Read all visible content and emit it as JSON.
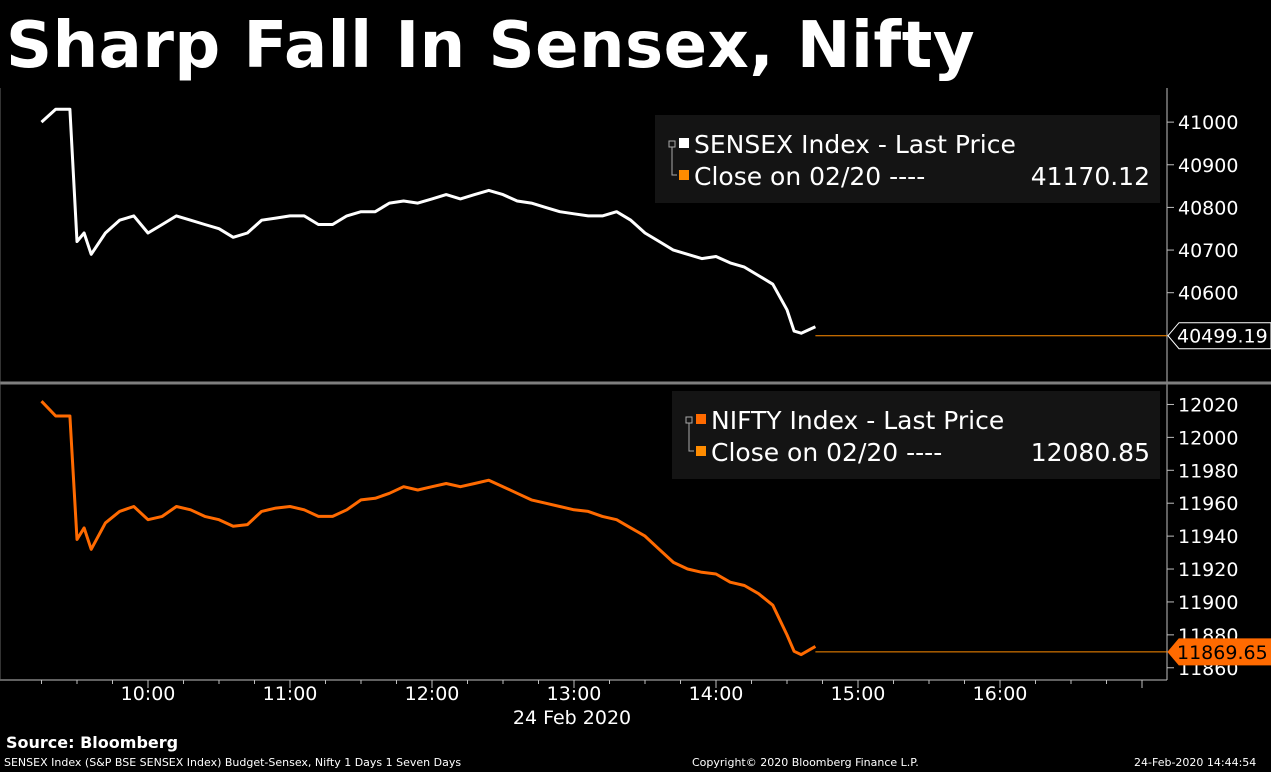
{
  "title": "Sharp Fall In Sensex, Nifty",
  "colors": {
    "sensex": "#ffffff",
    "nifty": "#ff6a00",
    "close_line": "#ff8c00",
    "legend_bg": "#141414",
    "divider": "#7f7f7f"
  },
  "chart_data": [
    {
      "type": "line",
      "name": "SENSEX",
      "legend": {
        "series_label": "SENSEX Index - Last Price",
        "close_label": "Close on 02/20 ----",
        "close_value": "41170.12"
      },
      "last_value": 40499.19,
      "last_label": "40499.19",
      "ylim": [
        40400,
        41080
      ],
      "yticks": [
        41000,
        40900,
        40800,
        40700,
        40600
      ],
      "x_unit": "hours (24 Feb 2020)",
      "x": [
        9.25,
        9.35,
        9.45,
        9.5,
        9.55,
        9.6,
        9.7,
        9.8,
        9.9,
        10.0,
        10.1,
        10.2,
        10.3,
        10.4,
        10.5,
        10.6,
        10.7,
        10.8,
        10.9,
        11.0,
        11.1,
        11.2,
        11.3,
        11.4,
        11.5,
        11.6,
        11.7,
        11.8,
        11.9,
        12.0,
        12.1,
        12.2,
        12.3,
        12.4,
        12.5,
        12.6,
        12.7,
        12.8,
        12.9,
        13.0,
        13.1,
        13.2,
        13.3,
        13.4,
        13.5,
        13.6,
        13.7,
        13.8,
        13.9,
        14.0,
        14.1,
        14.2,
        14.3,
        14.4,
        14.5,
        14.55,
        14.6,
        14.7
      ],
      "y": [
        41000,
        41030,
        41030,
        40720,
        40740,
        40690,
        40740,
        40770,
        40780,
        40740,
        40760,
        40780,
        40770,
        40760,
        40750,
        40730,
        40740,
        40770,
        40775,
        40780,
        40780,
        40760,
        40760,
        40780,
        40790,
        40790,
        40810,
        40815,
        40810,
        40820,
        40830,
        40820,
        40830,
        40840,
        40830,
        40815,
        40810,
        40800,
        40790,
        40785,
        40780,
        40780,
        40790,
        40770,
        40740,
        40720,
        40700,
        40690,
        40680,
        40685,
        40670,
        40660,
        40640,
        40620,
        40560,
        40510,
        40505,
        40520
      ]
    },
    {
      "type": "line",
      "name": "NIFTY",
      "legend": {
        "series_label": "NIFTY Index - Last Price",
        "close_label": "Close on 02/20 ----",
        "close_value": "12080.85"
      },
      "last_value": 11869.65,
      "last_label": "11869.65",
      "ylim": [
        11855,
        12030
      ],
      "yticks": [
        12020,
        12000,
        11980,
        11960,
        11940,
        11920,
        11900,
        11880,
        11860
      ],
      "x_unit": "hours (24 Feb 2020)",
      "x": [
        9.25,
        9.35,
        9.45,
        9.5,
        9.55,
        9.6,
        9.7,
        9.8,
        9.9,
        10.0,
        10.1,
        10.2,
        10.3,
        10.4,
        10.5,
        10.6,
        10.7,
        10.8,
        10.9,
        11.0,
        11.1,
        11.2,
        11.3,
        11.4,
        11.5,
        11.6,
        11.7,
        11.8,
        11.9,
        12.0,
        12.1,
        12.2,
        12.3,
        12.4,
        12.5,
        12.6,
        12.7,
        12.8,
        12.9,
        13.0,
        13.1,
        13.2,
        13.3,
        13.4,
        13.5,
        13.6,
        13.7,
        13.8,
        13.9,
        14.0,
        14.1,
        14.2,
        14.3,
        14.4,
        14.5,
        14.55,
        14.6,
        14.7
      ],
      "y": [
        12022,
        12013,
        12013,
        11938,
        11945,
        11932,
        11948,
        11955,
        11958,
        11950,
        11952,
        11958,
        11956,
        11952,
        11950,
        11946,
        11947,
        11955,
        11957,
        11958,
        11956,
        11952,
        11952,
        11956,
        11962,
        11963,
        11966,
        11970,
        11968,
        11970,
        11972,
        11970,
        11972,
        11974,
        11970,
        11966,
        11962,
        11960,
        11958,
        11956,
        11955,
        11952,
        11950,
        11945,
        11940,
        11932,
        11924,
        11920,
        11918,
        11917,
        11912,
        11910,
        11905,
        11898,
        11880,
        11870,
        11868,
        11873
      ]
    }
  ],
  "x_axis": {
    "ticks": [
      "10:00",
      "11:00",
      "12:00",
      "13:00",
      "14:00",
      "15:00",
      "16:00"
    ],
    "tick_hours": [
      10,
      11,
      12,
      13,
      14,
      15,
      16
    ],
    "date_label": "24 Feb 2020"
  },
  "source": "Source: Bloomberg",
  "footer": {
    "left": "SENSEX Index (S&P BSE SENSEX Index) Budget-Sensex, Nifty 1 Days 1 Seven Days",
    "center": "Copyright© 2020 Bloomberg Finance L.P.",
    "right": "24-Feb-2020 14:44:54"
  }
}
